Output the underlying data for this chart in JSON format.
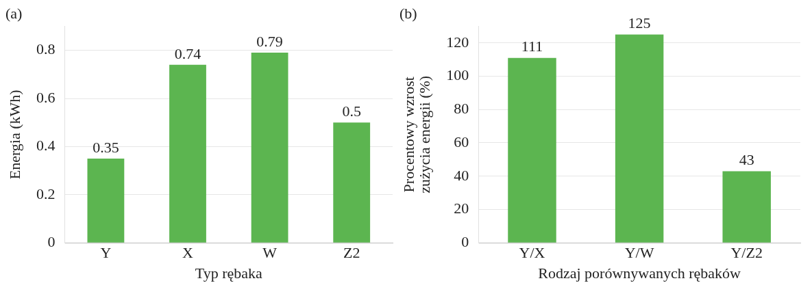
{
  "chart_data": [
    {
      "type": "bar",
      "title": "(a)",
      "xlabel": "Typ rębaka",
      "ylabel": "Energia (kWh)",
      "categories": [
        "Y",
        "X",
        "W",
        "Z2"
      ],
      "values": [
        0.35,
        0.74,
        0.79,
        0.5
      ],
      "color": "#5cb550",
      "ylim": [
        0,
        0.9
      ],
      "yticks": [
        0,
        0.2,
        0.4,
        0.6,
        0.8
      ],
      "grid": "y",
      "data_labels": true
    },
    {
      "type": "bar",
      "title": "(b)",
      "xlabel": "Rodzaj porównywanych rębaków",
      "ylabel": "Procentowy wzrost zużycia energii (%)",
      "categories": [
        "Y/X",
        "Y/W",
        "Y/Z2"
      ],
      "values": [
        111,
        125,
        43
      ],
      "color": "#5cb550",
      "ylim": [
        0,
        130
      ],
      "yticks": [
        0,
        20,
        40,
        60,
        80,
        100,
        120
      ],
      "grid": "y",
      "data_labels": true
    }
  ]
}
